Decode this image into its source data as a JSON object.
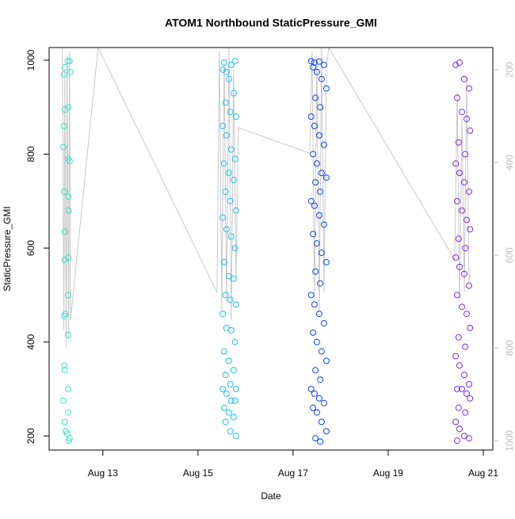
{
  "chart_data": {
    "type": "scatter",
    "title": "ATOM1 Northbound StaticPressure_GMI",
    "xlabel": "Date",
    "ylabel": "StaticPressure_GMI",
    "xlim": [
      11.87,
      21.2
    ],
    "xticks": [
      {
        "value": 13,
        "label": "Aug 13"
      },
      {
        "value": 15,
        "label": "Aug 15"
      },
      {
        "value": 17,
        "label": "Aug 17"
      },
      {
        "value": 19,
        "label": "Aug 19"
      },
      {
        "value": 21,
        "label": "Aug 21"
      }
    ],
    "ylim": [
      170,
      1027
    ],
    "yticks": [
      200,
      400,
      600,
      800,
      1000
    ],
    "y2lim": [
      1020,
      152
    ],
    "y2ticks": [
      200,
      400,
      600,
      800,
      1000
    ],
    "series": [
      {
        "color": "#40e0c8",
        "x": [
          12.2,
          12.18,
          12.3,
          12.32,
          12.2,
          12.18,
          12.17,
          12.27,
          12.3,
          12.19,
          12.27,
          12.28,
          12.2,
          12.27,
          12.2,
          12.27,
          12.21,
          12.19,
          12.27,
          12.19,
          12.2,
          12.27,
          12.17,
          12.27,
          12.2,
          12.22,
          12.25,
          12.3,
          12.28,
          12.26,
          12.27
        ],
        "values": [
          985,
          970,
          998,
          975,
          895,
          860,
          815,
          790,
          785,
          720,
          710,
          680,
          635,
          580,
          575,
          500,
          460,
          455,
          415,
          350,
          340,
          300,
          275,
          250,
          230,
          210,
          205,
          195,
          190,
          998,
          900
        ]
      },
      {
        "color": "#1ec0f0",
        "x": [
          15.52,
          15.6,
          15.7,
          15.78,
          15.55,
          15.65,
          15.75,
          15.58,
          15.68,
          15.8,
          15.52,
          15.6,
          15.7,
          15.78,
          15.55,
          15.65,
          15.75,
          15.58,
          15.68,
          15.8,
          15.52,
          15.6,
          15.7,
          15.78,
          15.55,
          15.65,
          15.75,
          15.58,
          15.68,
          15.8,
          15.52,
          15.6,
          15.7,
          15.78,
          15.55,
          15.65,
          15.75,
          15.58,
          15.68,
          15.8,
          15.52,
          15.6,
          15.7,
          15.78,
          15.55,
          15.65,
          15.75,
          15.58,
          15.68,
          15.8
        ],
        "values": [
          980,
          975,
          990,
          998,
          995,
          960,
          930,
          910,
          890,
          880,
          860,
          840,
          810,
          790,
          780,
          760,
          745,
          720,
          700,
          680,
          665,
          640,
          625,
          600,
          570,
          540,
          535,
          500,
          490,
          480,
          460,
          430,
          425,
          400,
          380,
          360,
          340,
          330,
          310,
          300,
          300,
          290,
          275,
          275,
          260,
          250,
          240,
          230,
          210,
          200
        ]
      },
      {
        "color": "#1040f0",
        "x": [
          17.38,
          17.45,
          17.55,
          17.65,
          17.42,
          17.5,
          17.6,
          17.7,
          17.47,
          17.57,
          17.38,
          17.45,
          17.55,
          17.65,
          17.42,
          17.5,
          17.6,
          17.7,
          17.47,
          17.57,
          17.38,
          17.45,
          17.55,
          17.65,
          17.42,
          17.5,
          17.6,
          17.7,
          17.47,
          17.57,
          17.38,
          17.45,
          17.55,
          17.65,
          17.42,
          17.5,
          17.6,
          17.7,
          17.47,
          17.57,
          17.38,
          17.45,
          17.55,
          17.65,
          17.42,
          17.5,
          17.6,
          17.7,
          17.47,
          17.57
        ],
        "values": [
          998,
          995,
          997,
          990,
          985,
          975,
          960,
          940,
          920,
          900,
          880,
          860,
          840,
          820,
          800,
          780,
          760,
          750,
          740,
          720,
          700,
          690,
          670,
          650,
          630,
          610,
          590,
          570,
          550,
          525,
          500,
          480,
          460,
          440,
          420,
          400,
          380,
          360,
          340,
          320,
          300,
          290,
          280,
          270,
          260,
          250,
          230,
          210,
          195,
          188
        ]
      },
      {
        "color": "#7d2ee0",
        "x": [
          20.42,
          20.5,
          20.6,
          20.7,
          20.45,
          20.55,
          20.65,
          20.72,
          20.48,
          20.62,
          20.42,
          20.5,
          20.6,
          20.7,
          20.45,
          20.55,
          20.65,
          20.72,
          20.48,
          20.62,
          20.42,
          20.5,
          20.6,
          20.7,
          20.45,
          20.55,
          20.65,
          20.72,
          20.48,
          20.62,
          20.42,
          20.5,
          20.6,
          20.7,
          20.45,
          20.55,
          20.65,
          20.72,
          20.48,
          20.62,
          20.42,
          20.5,
          20.6,
          20.7,
          20.45
        ],
        "values": [
          990,
          995,
          960,
          940,
          920,
          890,
          875,
          850,
          825,
          800,
          780,
          760,
          740,
          720,
          700,
          680,
          660,
          640,
          620,
          600,
          580,
          560,
          545,
          520,
          500,
          475,
          460,
          430,
          410,
          390,
          370,
          350,
          330,
          310,
          300,
          300,
          290,
          280,
          260,
          250,
          230,
          215,
          200,
          195,
          190
        ]
      },
      {
        "type": "line",
        "axis": "y2",
        "color": "#c8c8c8",
        "x": [
          12.15,
          12.18,
          12.2,
          12.23,
          12.25,
          12.28,
          12.3,
          12.32,
          12.9,
          15.4,
          15.45,
          15.5,
          15.55,
          15.6,
          15.65,
          15.7,
          15.75,
          15.8,
          15.85,
          17.35,
          17.4,
          17.45,
          17.5,
          17.55,
          17.6,
          17.65,
          17.7,
          17.75,
          20.4,
          20.45,
          20.5,
          20.55,
          20.6,
          20.65,
          20.7,
          20.72
        ],
        "values": [
          152,
          760,
          200,
          800,
          170,
          780,
          160,
          740,
          152,
          680,
          160,
          720,
          180,
          700,
          152,
          740,
          200,
          650,
          325,
          380,
          160,
          700,
          170,
          720,
          152,
          680,
          200,
          152,
          610,
          250,
          700,
          300,
          680,
          220,
          660,
          640
        ]
      }
    ]
  }
}
